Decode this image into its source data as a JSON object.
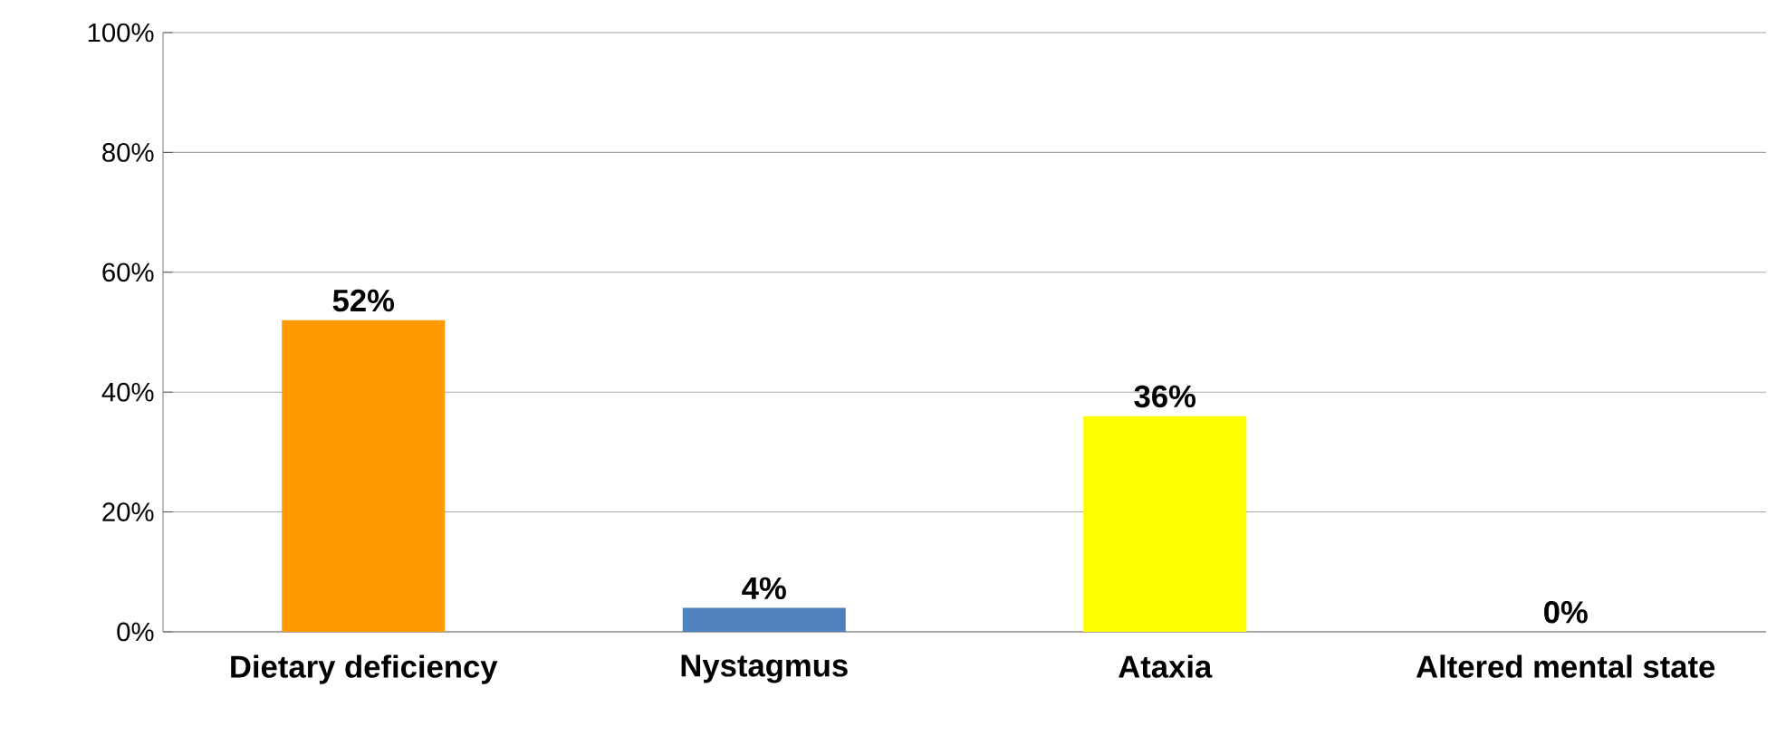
{
  "chart_data": {
    "type": "bar",
    "categories": [
      "Dietary deficiency",
      "Nystagmus",
      "Ataxia",
      "Altered mental state"
    ],
    "values": [
      52,
      4,
      36,
      0
    ],
    "colors": [
      "#ff9900",
      "#4f81bd",
      "#ffff00",
      "#4f81bd"
    ],
    "value_labels": [
      "52%",
      "4%",
      "36%",
      "0%"
    ],
    "ylim": [
      0,
      100
    ],
    "yticks": [
      {
        "value": 0,
        "label": "0%"
      },
      {
        "value": 20,
        "label": "20%"
      },
      {
        "value": 40,
        "label": "40%"
      },
      {
        "value": 60,
        "label": "60%"
      },
      {
        "value": 80,
        "label": "80%"
      },
      {
        "value": 100,
        "label": "100%"
      }
    ],
    "grid": "y"
  }
}
